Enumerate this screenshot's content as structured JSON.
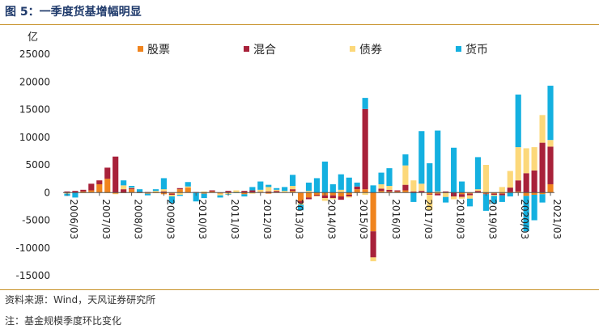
{
  "figure": {
    "title": "图 5：一季度货基增幅明显",
    "source": "资料来源：Wind，天风证券研究所",
    "note": "注：基金规模季度环比变化"
  },
  "chart_data": {
    "type": "bar",
    "stacked": true,
    "ylabel": "亿",
    "ylim": [
      -15000,
      25000
    ],
    "yticks": [
      -15000,
      -10000,
      -5000,
      0,
      5000,
      10000,
      15000,
      20000,
      25000
    ],
    "ytick_labels": [
      "-15000",
      "-10000",
      "-5000",
      "0",
      "5000",
      "10000",
      "15000",
      "20000",
      "25000"
    ],
    "grid": false,
    "legend": "top",
    "categories": [
      "2006/03",
      "2006/06",
      "2006/09",
      "2006/12",
      "2007/03",
      "2007/06",
      "2007/09",
      "2007/12",
      "2008/03",
      "2008/06",
      "2008/09",
      "2008/12",
      "2009/03",
      "2009/06",
      "2009/09",
      "2009/12",
      "2010/03",
      "2010/06",
      "2010/09",
      "2010/12",
      "2011/03",
      "2011/06",
      "2011/09",
      "2011/12",
      "2012/03",
      "2012/06",
      "2012/09",
      "2012/12",
      "2013/03",
      "2013/06",
      "2013/09",
      "2013/12",
      "2014/03",
      "2014/06",
      "2014/09",
      "2014/12",
      "2015/03",
      "2015/06",
      "2015/09",
      "2015/12",
      "2016/03",
      "2016/06",
      "2016/09",
      "2016/12",
      "2017/03",
      "2017/06",
      "2017/09",
      "2017/12",
      "2018/03",
      "2018/06",
      "2018/09",
      "2018/12",
      "2019/03",
      "2019/06",
      "2019/09",
      "2019/12",
      "2020/03",
      "2020/06",
      "2020/09",
      "2020/12",
      "2021/03"
    ],
    "xtick_labels": [
      "2006/03",
      "2007/03",
      "2008/03",
      "2009/03",
      "2010/03",
      "2011/03",
      "2012/03",
      "2013/03",
      "2014/03",
      "2015/03",
      "2016/03",
      "2017/03",
      "2018/03",
      "2019/03",
      "2020/03",
      "2021/03"
    ],
    "xtick_every": 4,
    "series": [
      {
        "name": "股票",
        "color": "#f0841e",
        "values": [
          0,
          0,
          200,
          400,
          1500,
          2500,
          -200,
          -100,
          600,
          -100,
          -200,
          -100,
          -300,
          -200,
          600,
          900,
          0,
          -200,
          200,
          -200,
          0,
          0,
          -300,
          0,
          0,
          -200,
          100,
          0,
          300,
          -1500,
          -900,
          -400,
          -500,
          -500,
          -700,
          -400,
          600,
          600,
          -7000,
          300,
          200,
          200,
          400,
          0,
          0,
          -300,
          -200,
          0,
          0,
          -300,
          -200,
          0,
          -200,
          -200,
          -200,
          100,
          200,
          -600,
          -400,
          -300,
          1500
        ]
      },
      {
        "name": "混合",
        "color": "#a8213a",
        "values": [
          200,
          300,
          300,
          1200,
          700,
          2000,
          6500,
          600,
          200,
          100,
          100,
          0,
          200,
          -200,
          200,
          0,
          100,
          0,
          200,
          0,
          300,
          0,
          300,
          400,
          100,
          200,
          200,
          0,
          300,
          -400,
          -300,
          -200,
          -500,
          -500,
          -600,
          -300,
          500,
          14500,
          -4700,
          400,
          300,
          200,
          1000,
          200,
          300,
          -100,
          -300,
          200,
          -700,
          -500,
          -300,
          300,
          -100,
          -200,
          -300,
          800,
          2000,
          3500,
          4000,
          9000,
          6800
        ]
      },
      {
        "name": "债券",
        "color": "#fcd87a",
        "values": [
          -200,
          0,
          -100,
          0,
          0,
          -100,
          -100,
          700,
          100,
          0,
          0,
          300,
          400,
          -300,
          -400,
          200,
          0,
          200,
          0,
          -300,
          -300,
          400,
          0,
          -200,
          400,
          800,
          200,
          300,
          600,
          -300,
          300,
          -100,
          -500,
          -200,
          500,
          -200,
          -100,
          -400,
          -700,
          800,
          700,
          0,
          3500,
          2000,
          1300,
          -2800,
          200,
          -800,
          -500,
          -300,
          -600,
          300,
          5000,
          -200,
          1000,
          3000,
          6000,
          4500,
          4200,
          5000,
          1200
        ]
      },
      {
        "name": "货币",
        "color": "#14b0e0",
        "values": [
          -400,
          -900,
          0,
          0,
          0,
          0,
          0,
          900,
          300,
          500,
          -300,
          300,
          2000,
          -1200,
          -200,
          800,
          -1600,
          -800,
          0,
          -400,
          -100,
          -100,
          -400,
          600,
          1500,
          400,
          300,
          700,
          2000,
          -1000,
          1500,
          2600,
          5600,
          1500,
          2800,
          2700,
          700,
          2000,
          1300,
          2100,
          3200,
          0,
          2000,
          -1700,
          9500,
          5300,
          11000,
          -1000,
          8100,
          2000,
          -1400,
          5800,
          -3000,
          -1400,
          -1200,
          -700,
          9500,
          -6400,
          -4600,
          -1500,
          9800
        ]
      }
    ]
  }
}
